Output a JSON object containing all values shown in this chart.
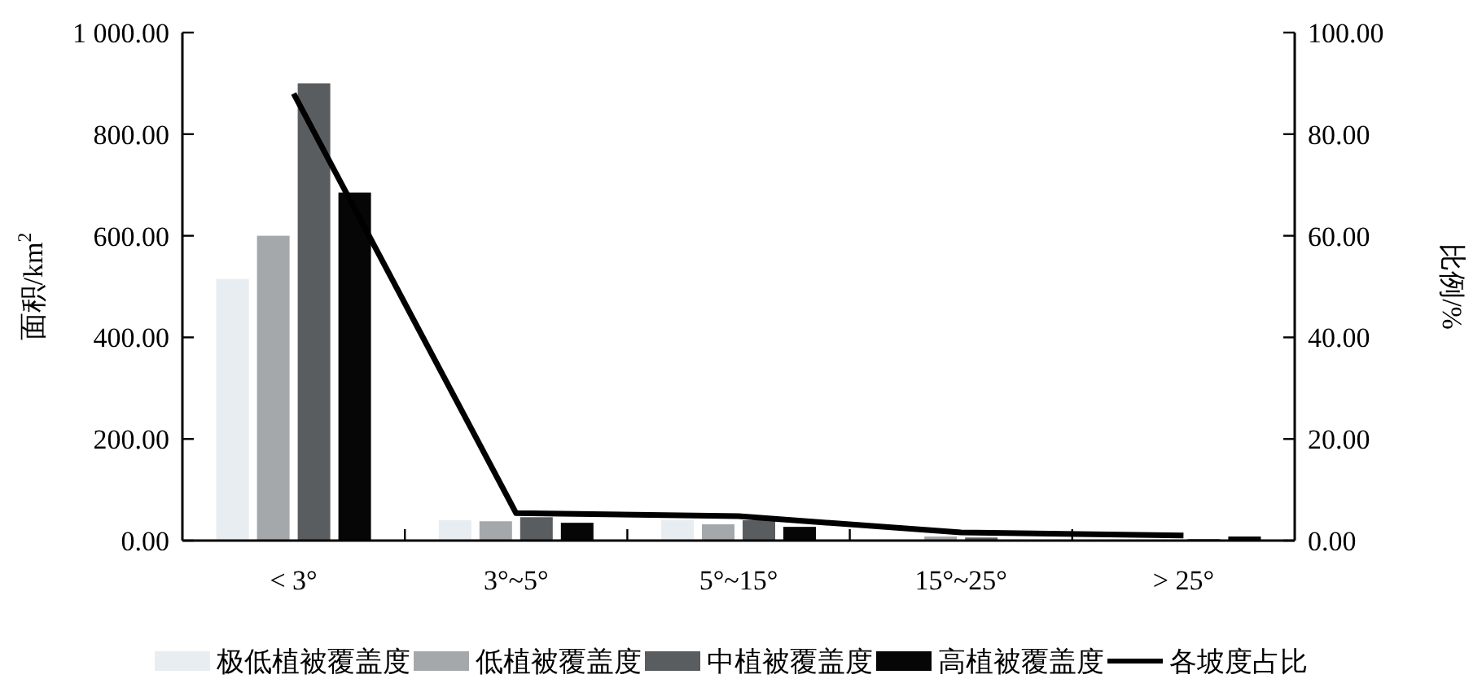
{
  "chart_data": {
    "type": "bar",
    "ylabel": "面积/km$^{2}$",
    "y2label": "比例/%",
    "categories": [
      "< 3°",
      "3°~5°",
      "5°~15°",
      "15°~25°",
      "> 25°"
    ],
    "series": [
      {
        "name": "极低植被覆盖度",
        "color": "#e8edf1",
        "values": [
          515,
          40,
          40,
          null,
          2
        ]
      },
      {
        "name": "低植被覆盖度",
        "color": "#a5a8ab",
        "values": [
          600,
          38,
          32,
          8,
          null
        ]
      },
      {
        "name": "中植被覆盖度",
        "color": "#5a5d60",
        "values": [
          900,
          46,
          40,
          6,
          3
        ]
      },
      {
        "name": "高植被覆盖度",
        "color": "#060606",
        "values": [
          685,
          35,
          27,
          null,
          8
        ]
      },
      {
        "name": "各坡度占比",
        "type": "line",
        "axis": "y2",
        "color": "#000000",
        "values": [
          88,
          5.4,
          4.8,
          1.6,
          1.0
        ]
      }
    ],
    "ylim": [
      0,
      1000
    ],
    "yticks": [
      {
        "value": 0,
        "label": "0.00"
      },
      {
        "value": 200,
        "label": "200.00"
      },
      {
        "value": 400,
        "label": "400.00"
      },
      {
        "value": 600,
        "label": "600.00"
      },
      {
        "value": 800,
        "label": "800.00"
      },
      {
        "value": 1000,
        "label": "1 000.00"
      }
    ],
    "y2lim": [
      0,
      100
    ],
    "y2ticks": [
      {
        "value": 0,
        "label": "0.00"
      },
      {
        "value": 20,
        "label": "20.00"
      },
      {
        "value": 40,
        "label": "40.00"
      },
      {
        "value": 60,
        "label": "60.00"
      },
      {
        "value": 80,
        "label": "80.00"
      },
      {
        "value": 100,
        "label": "100.00"
      }
    ],
    "legend": "bottom",
    "grid": false,
    "marker": "none",
    "line_style": "solid"
  }
}
